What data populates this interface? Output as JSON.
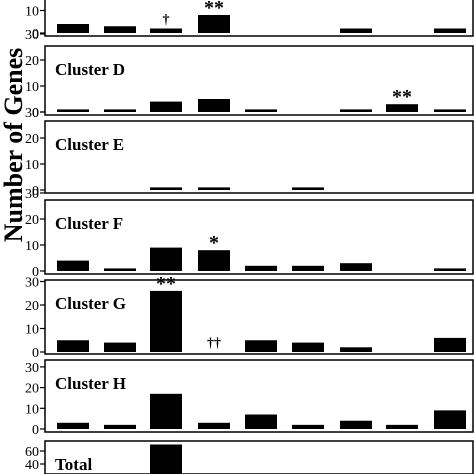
{
  "chart_data": {
    "type": "bar",
    "ylabel": "Number of Genes",
    "colors": {
      "bar": "#000000",
      "axis": "#000000",
      "background": "#ffffff"
    },
    "categories_count": 9,
    "panels": [
      {
        "label": "",
        "ylim": [
          0,
          30
        ],
        "ticks": [
          0,
          10
        ],
        "values": [
          4,
          3,
          2,
          8,
          0,
          0,
          2,
          0,
          2
        ],
        "annotations": [
          {
            "category": 2,
            "text": "†"
          },
          {
            "category": 3,
            "text": "**"
          }
        ]
      },
      {
        "label": "Cluster D",
        "ylim": [
          0,
          30
        ],
        "ticks": [
          0,
          10,
          20,
          30
        ],
        "values": [
          1,
          1,
          4,
          5,
          1,
          0,
          1,
          3,
          1
        ],
        "annotations": [
          {
            "category": 7,
            "text": "**"
          }
        ]
      },
      {
        "label": "Cluster E",
        "ylim": [
          0,
          30
        ],
        "ticks": [
          0,
          10,
          20,
          30
        ],
        "values": [
          0,
          0,
          1,
          1,
          0,
          1,
          0,
          0,
          0
        ],
        "annotations": []
      },
      {
        "label": "Cluster F",
        "ylim": [
          0,
          30
        ],
        "ticks": [
          0,
          10,
          20,
          30
        ],
        "values": [
          4,
          1,
          9,
          8,
          2,
          2,
          3,
          0,
          1
        ],
        "annotations": [
          {
            "category": 3,
            "text": "*"
          }
        ]
      },
      {
        "label": "Cluster G",
        "ylim": [
          0,
          30
        ],
        "ticks": [
          0,
          10,
          20,
          30
        ],
        "values": [
          5,
          4,
          26,
          0,
          5,
          4,
          2,
          0,
          6
        ],
        "annotations": [
          {
            "category": 2,
            "text": "**"
          },
          {
            "category": 3,
            "text": "††"
          }
        ]
      },
      {
        "label": "Cluster H",
        "ylim": [
          0,
          30
        ],
        "ticks": [
          0,
          10,
          20,
          30
        ],
        "values": [
          3,
          2,
          17,
          3,
          7,
          2,
          4,
          2,
          9
        ],
        "annotations": []
      },
      {
        "label": "Total",
        "ylim": [
          0,
          80
        ],
        "ticks": [
          40,
          60
        ],
        "values": [
          null,
          null,
          70,
          null,
          null,
          null,
          null,
          null,
          null
        ],
        "annotations": []
      }
    ]
  }
}
